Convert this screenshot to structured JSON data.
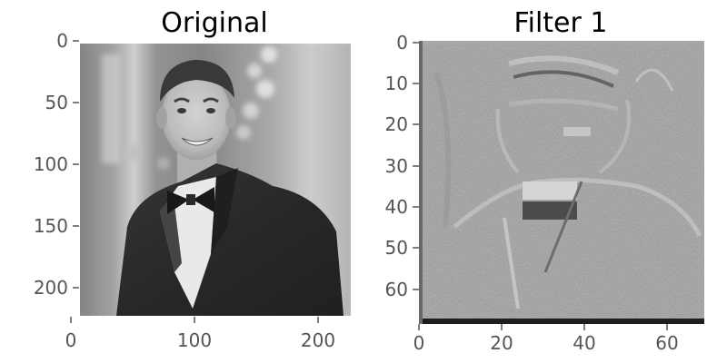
{
  "figure": {
    "background": "#ffffff",
    "tick_color": "#555555",
    "title_color": "#000000"
  },
  "panels": [
    {
      "title": "Original",
      "content": "grayscale portrait photograph: smiling man in dark suit and bow tie, blurred indoor background with bokeh lights",
      "image_extent": [
        0,
        224
      ],
      "xticks": [
        {
          "value": 0,
          "label": "0"
        },
        {
          "value": 100,
          "label": "100"
        },
        {
          "value": 200,
          "label": "200"
        }
      ],
      "yticks": [
        {
          "value": 0,
          "label": "0"
        },
        {
          "value": 50,
          "label": "50"
        },
        {
          "value": 100,
          "label": "100"
        },
        {
          "value": 150,
          "label": "150"
        },
        {
          "value": 200,
          "label": "200"
        }
      ]
    },
    {
      "title": "Filter 1",
      "content": "grayscale convolutional feature map of the portrait: edge-like response, noisy mid-gray texture",
      "image_extent": [
        0,
        69
      ],
      "xticks": [
        {
          "value": 0,
          "label": "0"
        },
        {
          "value": 20,
          "label": "20"
        },
        {
          "value": 40,
          "label": "40"
        },
        {
          "value": 60,
          "label": "60"
        }
      ],
      "yticks": [
        {
          "value": 0,
          "label": "0"
        },
        {
          "value": 10,
          "label": "10"
        },
        {
          "value": 20,
          "label": "20"
        },
        {
          "value": 30,
          "label": "30"
        },
        {
          "value": 40,
          "label": "40"
        },
        {
          "value": 50,
          "label": "50"
        },
        {
          "value": 60,
          "label": "60"
        }
      ]
    }
  ]
}
